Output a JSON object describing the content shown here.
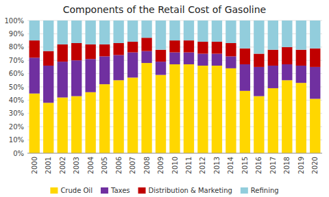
{
  "chart_data": {
    "type": "bar",
    "stacked": true,
    "title": "Components of the Retail Cost of Gasoline",
    "categories": [
      "2000",
      "2001",
      "2002",
      "2003",
      "2004",
      "2005",
      "2006",
      "2007",
      "2008",
      "2009",
      "2010",
      "2011",
      "2012",
      "2013",
      "2014",
      "2015",
      "2016",
      "2017",
      "2018",
      "2019",
      "2020"
    ],
    "series": [
      {
        "name": "Crude Oil",
        "color": "#FFD700",
        "values": [
          0.45,
          0.38,
          0.42,
          0.43,
          0.46,
          0.52,
          0.55,
          0.57,
          0.68,
          0.59,
          0.67,
          0.67,
          0.66,
          0.66,
          0.64,
          0.47,
          0.43,
          0.49,
          0.55,
          0.53,
          0.41
        ]
      },
      {
        "name": "Taxes",
        "color": "#7030A0",
        "values": [
          0.27,
          0.28,
          0.27,
          0.27,
          0.25,
          0.21,
          0.19,
          0.19,
          0.09,
          0.1,
          0.09,
          0.09,
          0.09,
          0.09,
          0.09,
          0.2,
          0.22,
          0.17,
          0.12,
          0.13,
          0.24
        ]
      },
      {
        "name": "Distribution & Marketing",
        "color": "#C00000",
        "values": [
          0.13,
          0.11,
          0.13,
          0.13,
          0.11,
          0.09,
          0.09,
          0.08,
          0.1,
          0.09,
          0.09,
          0.09,
          0.09,
          0.09,
          0.1,
          0.12,
          0.1,
          0.12,
          0.13,
          0.12,
          0.14
        ]
      },
      {
        "name": "Refining",
        "color": "#92CDDC",
        "values": [
          0.15,
          0.23,
          0.18,
          0.17,
          0.18,
          0.18,
          0.17,
          0.16,
          0.13,
          0.22,
          0.15,
          0.15,
          0.16,
          0.16,
          0.17,
          0.21,
          0.25,
          0.22,
          0.2,
          0.22,
          0.21
        ]
      }
    ],
    "ylim": [
      0,
      1.0
    ],
    "yticks": [
      {
        "value": 0.0,
        "label": "0%"
      },
      {
        "value": 0.1,
        "label": "10%"
      },
      {
        "value": 0.2,
        "label": "20%"
      },
      {
        "value": 0.3,
        "label": "30%"
      },
      {
        "value": 0.4,
        "label": "40%"
      },
      {
        "value": 0.5,
        "label": "50%"
      },
      {
        "value": 0.6,
        "label": "60%"
      },
      {
        "value": 0.7,
        "label": "70%"
      },
      {
        "value": 0.8,
        "label": "80%"
      },
      {
        "value": 0.9,
        "label": "90%"
      },
      {
        "value": 1.0,
        "label": "100%"
      }
    ],
    "grid": true,
    "legend": "bottom"
  }
}
